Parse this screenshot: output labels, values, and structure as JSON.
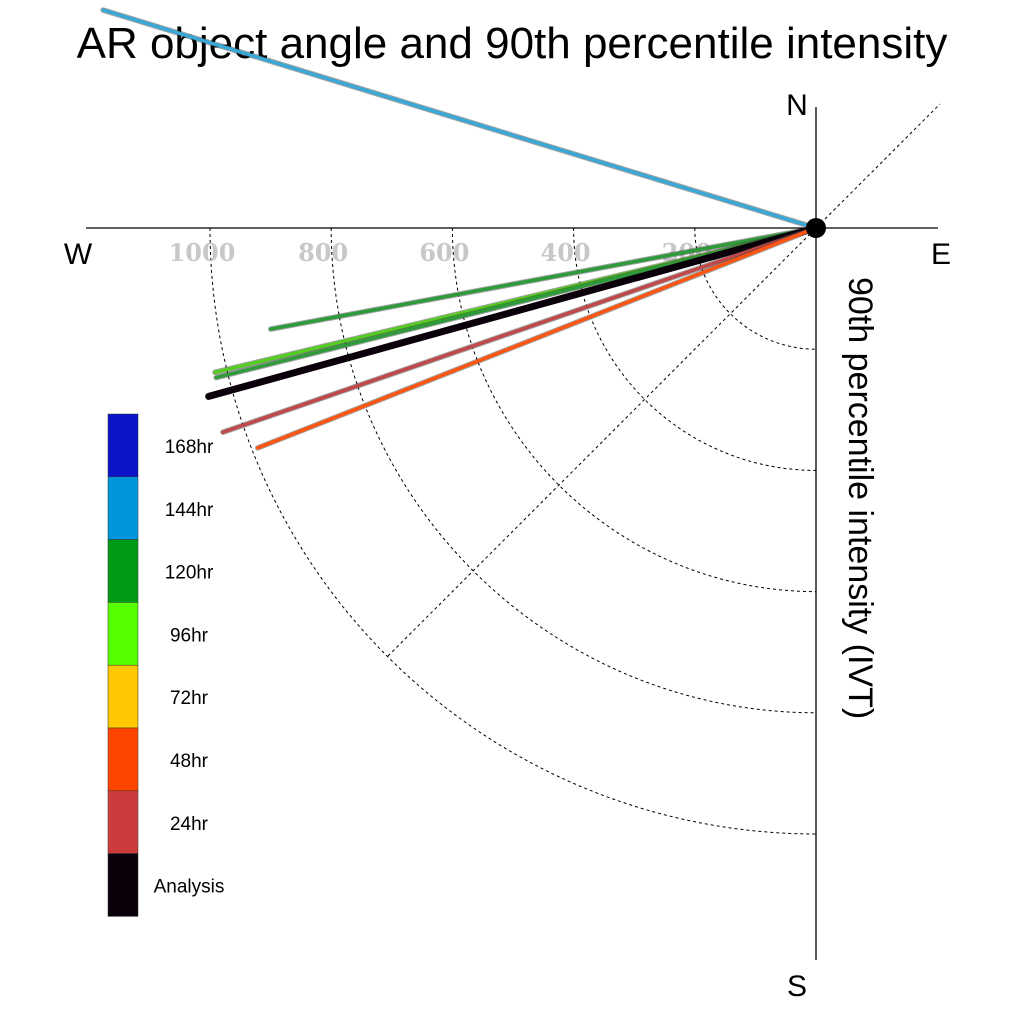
{
  "chart_data": {
    "type": "polar-vector",
    "title": "AR object angle and 90th percentile intensity",
    "radial_label": "90th percentile intensity (IVT)",
    "compass": {
      "north": "N",
      "south": "S",
      "east": "E",
      "west": "W"
    },
    "radial_ticks": [
      200,
      400,
      600,
      800,
      1000
    ],
    "rlim": [
      0,
      1200
    ],
    "grid": true,
    "legend_placement": "lower-left",
    "legend": [
      {
        "label": "168hr",
        "color": "#0a14c8"
      },
      {
        "label": "144hr",
        "color": "#0096dc"
      },
      {
        "label": "120hr",
        "color": "#009b14"
      },
      {
        "label": "96hr",
        "color": "#55ff00"
      },
      {
        "label": "72hr",
        "color": "#ffc800"
      },
      {
        "label": "48hr",
        "color": "#ff4600"
      },
      {
        "label": "24hr",
        "color": "#cd3c3c"
      },
      {
        "label": "Analysis",
        "color": "#0a000a"
      }
    ],
    "series": [
      {
        "name": "144hr",
        "color": "#3aa8d6",
        "angle_deg": 287,
        "intensity": 1230
      },
      {
        "name": "120hr",
        "color": "#2e9b3a",
        "angle_deg": 259.5,
        "intensity": 915
      },
      {
        "name": "96hr",
        "color": "#55cc22",
        "angle_deg": 256.5,
        "intensity": 1020
      },
      {
        "name": "120hr",
        "color": "#2e9b3a",
        "angle_deg": 256,
        "intensity": 1020
      },
      {
        "name": "Analysis",
        "color": "#0a000a",
        "angle_deg": 254.5,
        "intensity": 1040
      },
      {
        "name": "24hr",
        "color": "#c04848",
        "angle_deg": 251,
        "intensity": 1035
      },
      {
        "name": "48hr",
        "color": "#ff5511",
        "angle_deg": 248.5,
        "intensity": 990
      }
    ]
  }
}
